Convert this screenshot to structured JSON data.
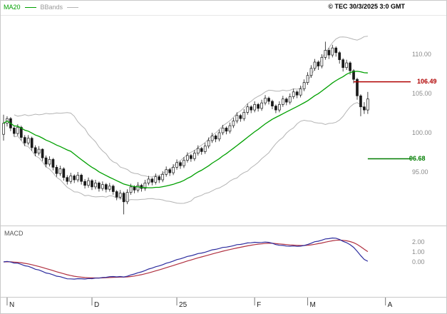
{
  "header": {
    "legend_ma20": "MA20",
    "legend_bbands": "BBands",
    "copyright": "© TEC 30/3/2025 3:0 GMT"
  },
  "indicator_panel": {
    "label": "MACD"
  },
  "axes": {
    "price": [
      {
        "text": "110.00",
        "value": 110
      },
      {
        "text": "105.00",
        "value": 105
      },
      {
        "text": "100.00",
        "value": 100
      },
      {
        "text": "95.00",
        "value": 95
      }
    ],
    "macd": [
      {
        "text": "2.00",
        "value": 2
      },
      {
        "text": "1.00",
        "value": 1
      },
      {
        "text": "0.00",
        "value": 0
      }
    ],
    "time": [
      {
        "label": "N",
        "day": 1
      },
      {
        "label": "D",
        "day": 25
      },
      {
        "label": "25",
        "day": 49
      },
      {
        "label": "F",
        "day": 71
      },
      {
        "label": "M",
        "day": 86
      },
      {
        "label": "A",
        "day": 108
      }
    ]
  },
  "chart_data": {
    "type": "candlestick",
    "title": "",
    "x_axis": {
      "unit": "trading days, Nov 2024 - Apr 2025",
      "tick_labels": [
        "N",
        "D",
        "25",
        "F",
        "M",
        "A"
      ],
      "span_days": 115
    },
    "y_axis": {
      "tick_values": [
        110,
        105,
        100,
        95
      ],
      "range": [
        88.5,
        112.5
      ]
    },
    "candles": [
      [
        99.8,
        102.3,
        99.0,
        101.2
      ],
      [
        101.2,
        102.1,
        100.8,
        101.8
      ],
      [
        101.8,
        102.0,
        100.2,
        100.6
      ],
      [
        100.6,
        100.9,
        99.5,
        99.9
      ],
      [
        99.9,
        101.1,
        99.6,
        100.7
      ],
      [
        100.7,
        100.9,
        99.0,
        99.4
      ],
      [
        99.4,
        99.7,
        98.3,
        98.7
      ],
      [
        98.7,
        99.7,
        98.4,
        99.3
      ],
      [
        99.3,
        99.5,
        97.7,
        98.1
      ],
      [
        98.1,
        98.4,
        97.0,
        97.4
      ],
      [
        97.4,
        98.3,
        97.1,
        97.9
      ],
      [
        97.9,
        98.0,
        96.4,
        96.8
      ],
      [
        96.8,
        97.1,
        95.6,
        96.0
      ],
      [
        96.0,
        97.0,
        95.7,
        96.6
      ],
      [
        96.6,
        96.8,
        95.2,
        95.6
      ],
      [
        95.6,
        95.9,
        94.4,
        94.8
      ],
      [
        94.8,
        95.8,
        94.5,
        95.4
      ],
      [
        95.4,
        95.6,
        93.9,
        94.3
      ],
      [
        94.3,
        94.6,
        93.4,
        93.8
      ],
      [
        93.8,
        94.9,
        93.5,
        94.5
      ],
      [
        94.5,
        94.7,
        93.6,
        94.0
      ],
      [
        94.0,
        95.0,
        93.7,
        94.6
      ],
      [
        94.6,
        94.8,
        93.4,
        93.8
      ],
      [
        93.8,
        94.1,
        92.9,
        93.3
      ],
      [
        93.3,
        94.3,
        93.0,
        93.9
      ],
      [
        93.9,
        94.1,
        92.7,
        93.1
      ],
      [
        93.1,
        94.0,
        92.8,
        93.6
      ],
      [
        93.6,
        93.8,
        92.5,
        92.9
      ],
      [
        92.9,
        93.8,
        92.6,
        93.4
      ],
      [
        93.4,
        93.6,
        92.4,
        92.8
      ],
      [
        92.8,
        93.6,
        92.5,
        93.2
      ],
      [
        93.2,
        93.4,
        92.1,
        92.5
      ],
      [
        92.5,
        92.7,
        91.4,
        91.8
      ],
      [
        91.8,
        92.7,
        91.5,
        92.3
      ],
      [
        92.3,
        92.5,
        89.6,
        91.2
      ],
      [
        91.2,
        92.8,
        90.9,
        92.4
      ],
      [
        92.4,
        93.5,
        92.1,
        93.1
      ],
      [
        93.1,
        93.3,
        92.3,
        92.7
      ],
      [
        92.7,
        93.7,
        92.4,
        93.3
      ],
      [
        93.3,
        93.5,
        92.5,
        92.9
      ],
      [
        92.9,
        94.0,
        92.6,
        93.6
      ],
      [
        93.6,
        94.5,
        93.3,
        94.1
      ],
      [
        94.1,
        94.3,
        93.3,
        93.7
      ],
      [
        93.7,
        94.8,
        93.4,
        94.4
      ],
      [
        94.4,
        94.6,
        93.6,
        94.0
      ],
      [
        94.0,
        95.1,
        93.7,
        94.7
      ],
      [
        94.7,
        95.7,
        94.4,
        95.3
      ],
      [
        95.3,
        95.5,
        94.5,
        94.9
      ],
      [
        94.9,
        96.0,
        94.6,
        95.6
      ],
      [
        95.6,
        96.6,
        95.3,
        96.2
      ],
      [
        96.2,
        96.4,
        95.4,
        95.8
      ],
      [
        95.8,
        96.9,
        95.5,
        96.5
      ],
      [
        96.5,
        97.5,
        96.2,
        97.1
      ],
      [
        97.1,
        97.3,
        96.3,
        96.7
      ],
      [
        96.7,
        97.8,
        96.4,
        97.4
      ],
      [
        97.4,
        98.4,
        97.1,
        98.0
      ],
      [
        98.0,
        98.2,
        97.2,
        97.6
      ],
      [
        97.6,
        98.7,
        97.3,
        98.3
      ],
      [
        98.3,
        99.4,
        98.0,
        99.0
      ],
      [
        99.0,
        100.0,
        98.7,
        99.6
      ],
      [
        99.6,
        99.8,
        98.8,
        99.2
      ],
      [
        99.2,
        100.4,
        98.9,
        100.0
      ],
      [
        100.0,
        101.0,
        99.7,
        100.6
      ],
      [
        100.6,
        100.8,
        99.8,
        100.2
      ],
      [
        100.2,
        101.3,
        99.9,
        100.9
      ],
      [
        100.9,
        101.9,
        100.6,
        101.5
      ],
      [
        101.5,
        102.6,
        101.2,
        102.2
      ],
      [
        102.2,
        102.4,
        101.4,
        101.8
      ],
      [
        101.8,
        103.0,
        101.5,
        102.6
      ],
      [
        102.6,
        103.7,
        102.3,
        103.3
      ],
      [
        103.3,
        103.5,
        102.5,
        102.9
      ],
      [
        102.9,
        104.0,
        102.6,
        103.6
      ],
      [
        103.6,
        103.8,
        102.7,
        103.1
      ],
      [
        103.1,
        104.2,
        102.8,
        103.8
      ],
      [
        103.8,
        104.8,
        103.5,
        104.4
      ],
      [
        104.4,
        104.6,
        103.6,
        104.0
      ],
      [
        104.0,
        104.2,
        103.0,
        103.4
      ],
      [
        103.4,
        103.6,
        102.5,
        102.9
      ],
      [
        102.9,
        104.0,
        102.6,
        103.6
      ],
      [
        103.6,
        104.7,
        103.3,
        104.3
      ],
      [
        104.3,
        104.5,
        103.5,
        103.9
      ],
      [
        103.9,
        105.0,
        103.6,
        104.6
      ],
      [
        104.6,
        105.6,
        104.3,
        105.2
      ],
      [
        105.2,
        105.4,
        104.4,
        104.8
      ],
      [
        104.8,
        106.0,
        104.5,
        105.6
      ],
      [
        105.6,
        106.8,
        105.3,
        106.4
      ],
      [
        106.4,
        107.7,
        106.1,
        107.3
      ],
      [
        107.3,
        108.6,
        107.0,
        108.2
      ],
      [
        108.2,
        109.4,
        107.9,
        109.0
      ],
      [
        109.0,
        109.2,
        108.0,
        108.5
      ],
      [
        108.5,
        110.0,
        108.2,
        109.6
      ],
      [
        109.6,
        111.6,
        109.3,
        110.5
      ],
      [
        110.5,
        110.8,
        109.4,
        109.9
      ],
      [
        109.9,
        111.2,
        109.6,
        110.8
      ],
      [
        110.8,
        111.0,
        109.7,
        110.2
      ],
      [
        110.2,
        110.4,
        108.8,
        109.3
      ],
      [
        109.3,
        109.5,
        107.8,
        108.3
      ],
      [
        108.3,
        109.3,
        108.0,
        108.9
      ],
      [
        108.9,
        109.1,
        107.4,
        107.9
      ],
      [
        107.9,
        108.1,
        106.3,
        106.8
      ],
      [
        106.8,
        107.0,
        104.2,
        104.7
      ],
      [
        104.7,
        104.9,
        102.1,
        103.3
      ],
      [
        103.3,
        103.9,
        102.4,
        102.9
      ],
      [
        102.9,
        105.2,
        102.4,
        104.3
      ]
    ],
    "overlays": [
      {
        "name": "MA20",
        "type": "sma",
        "period": 20,
        "color": "#00a000"
      },
      {
        "name": "BBands",
        "type": "bollinger",
        "period": 20,
        "stddev": 2,
        "color": "#b4b4b4"
      }
    ],
    "secondary": {
      "name": "MACD",
      "fast": 12,
      "slow": 26,
      "signal_period": 9,
      "macd_color": "#2c2c9e",
      "signal_color": "#b03040",
      "y_ticks": [
        2,
        1,
        0
      ]
    },
    "levels": [
      {
        "name": "resistance",
        "label": "106.49",
        "value": 106.49,
        "color": "#b00000",
        "start_day": 99
      },
      {
        "name": "support",
        "label": "96.68",
        "value": 96.68,
        "color": "#007d00",
        "start_day": 103
      }
    ]
  }
}
